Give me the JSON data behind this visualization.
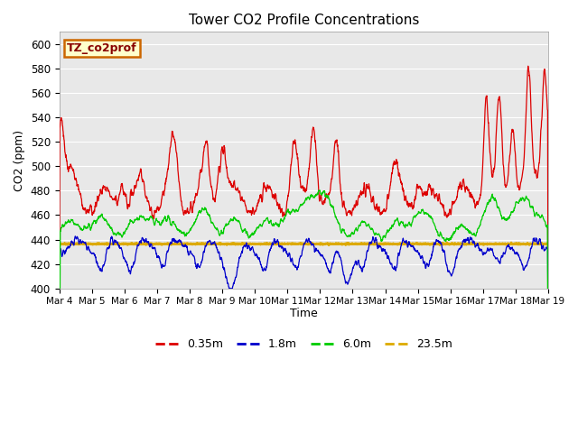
{
  "title": "Tower CO2 Profile Concentrations",
  "ylabel": "CO2 (ppm)",
  "xlabel": "Time",
  "ylim": [
    400,
    610
  ],
  "xlim": [
    0,
    15
  ],
  "bg_color": "#e8e8e8",
  "fig_color": "#ffffff",
  "label_box_text": "TZ_co2prof",
  "label_box_bg": "#ffffcc",
  "label_box_border": "#cc6600",
  "label_box_text_color": "#880000",
  "xtick_labels": [
    "Mar 4",
    "Mar 5",
    "Mar 6",
    "Mar 7",
    "Mar 8",
    "Mar 9",
    "Mar 10",
    "Mar 11",
    "Mar 12",
    "Mar 13",
    "Mar 14",
    "Mar 15",
    "Mar 16",
    "Mar 17",
    "Mar 18",
    "Mar 19"
  ],
  "ytick_labels": [
    400,
    420,
    440,
    460,
    480,
    500,
    520,
    540,
    560,
    580,
    600
  ],
  "line_colors": {
    "0.35m": "#dd0000",
    "1.8m": "#0000cc",
    "6.0m": "#00cc00",
    "23.5m": "#ddaa00"
  },
  "legend_labels": [
    "0.35m",
    "1.8m",
    "6.0m",
    "23.5m"
  ],
  "n_points": 2000,
  "orange_level": 436.5
}
